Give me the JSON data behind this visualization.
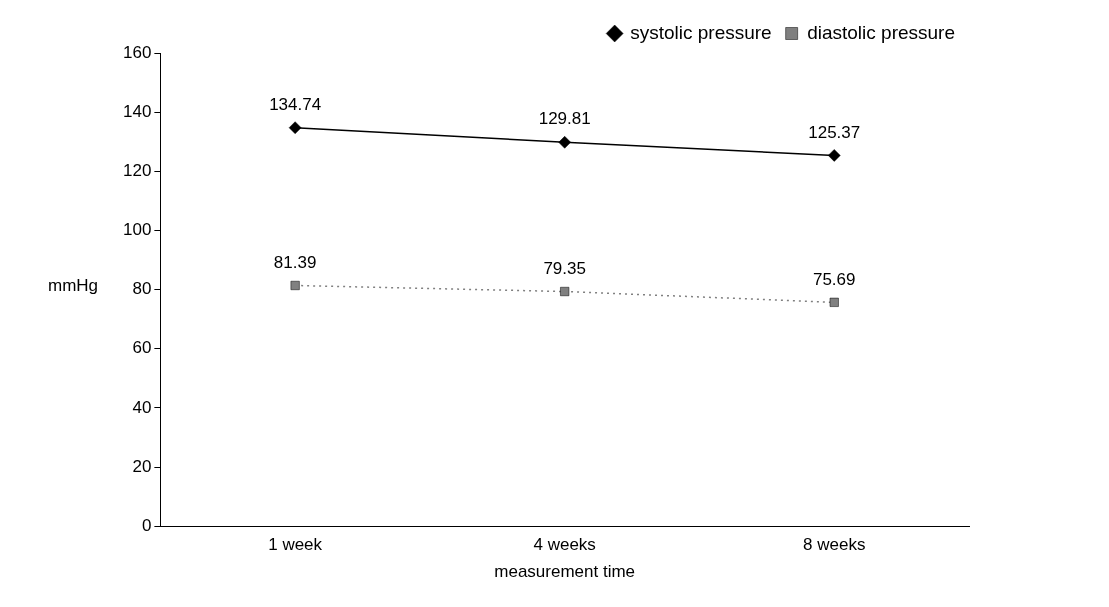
{
  "chart_data": {
    "type": "line",
    "xlabel": "measurement time",
    "ylabel": "mmHg",
    "categories": [
      "1 week",
      "4 weeks",
      "8 weeks"
    ],
    "series": [
      {
        "name": "systolic pressure",
        "color": "#000000",
        "values": [
          134.74,
          129.81,
          125.37
        ],
        "marker": "diamond",
        "line_style": "solid"
      },
      {
        "name": "diastolic pressure",
        "color": "#808080",
        "values": [
          81.39,
          79.35,
          75.69
        ],
        "marker": "square",
        "line_style": "dotted"
      }
    ],
    "ylim": [
      0,
      160
    ],
    "yticks": [
      0,
      20,
      40,
      60,
      80,
      100,
      120,
      140,
      160
    ],
    "grid": false,
    "legend": "top right",
    "data_labels": true
  }
}
